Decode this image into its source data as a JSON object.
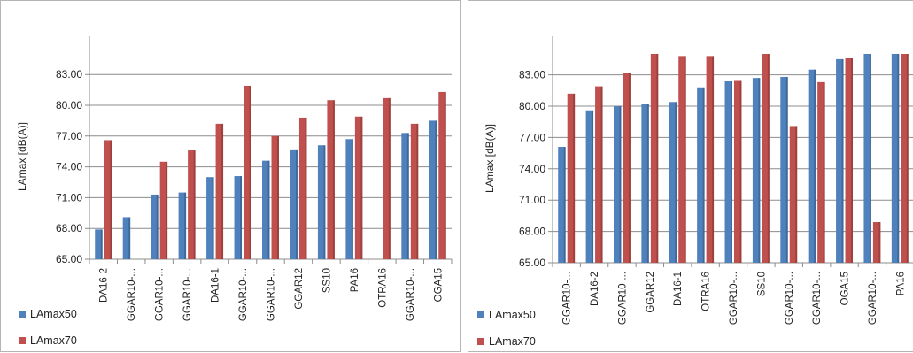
{
  "colors": {
    "series1": "#4f81bd",
    "series2": "#c0504d",
    "grid": "#8c8c8c",
    "axis": "#8c8c8c"
  },
  "chart_data": [
    {
      "type": "bar",
      "ylabel": "LAmax [dB(A)]",
      "ylim": [
        65,
        85
      ],
      "yticks": [
        65,
        68,
        71,
        74,
        77,
        80,
        83
      ],
      "ytick_labels": [
        "65.00",
        "68.00",
        "71.00",
        "74.00",
        "77.00",
        "80.00",
        "83.00"
      ],
      "grid": true,
      "legend_position": "bottom-left",
      "categories": [
        "DA16-2",
        "GGAR10-...",
        "GGAR10-...",
        "GGAR10-...",
        "DA16-1",
        "GGAR10-...",
        "GGAR10-...",
        "GGAR12",
        "SS10",
        "PA16",
        "OTRA16",
        "GGAR10-...",
        "OGA15"
      ],
      "series": [
        {
          "name": "LAmax50",
          "values": [
            67.9,
            69.1,
            71.3,
            71.5,
            73.0,
            73.1,
            74.6,
            75.7,
            76.1,
            76.7,
            null,
            77.3,
            78.5
          ]
        },
        {
          "name": "LAmax70",
          "values": [
            76.6,
            null,
            74.5,
            75.6,
            78.2,
            81.9,
            77.0,
            78.8,
            80.5,
            78.9,
            80.7,
            78.2,
            81.3
          ]
        }
      ]
    },
    {
      "type": "bar",
      "ylabel": "LAmax [dB(A)]",
      "ylim": [
        65,
        85
      ],
      "yticks": [
        65,
        68,
        71,
        74,
        77,
        80,
        83
      ],
      "ytick_labels": [
        "65.00",
        "68.00",
        "71.00",
        "74.00",
        "77.00",
        "80.00",
        "83.00"
      ],
      "grid": true,
      "legend_position": "bottom-left",
      "categories": [
        "GGAR10-...",
        "DA16-2",
        "GGAR10-...",
        "GGAR12",
        "DA16-1",
        "OTRA16",
        "GGAR10-...",
        "SS10",
        "GGAR10-...",
        "GGAR10-...",
        "OGA15",
        "GGAR10-...",
        "PA16"
      ],
      "series": [
        {
          "name": "LAmax50",
          "values": [
            76.1,
            79.6,
            80.0,
            80.2,
            80.4,
            81.8,
            82.4,
            82.7,
            82.8,
            83.5,
            84.5,
            85.0,
            85.0
          ]
        },
        {
          "name": "LAmax70",
          "values": [
            81.2,
            81.9,
            83.2,
            85.0,
            84.8,
            84.8,
            82.5,
            85.0,
            78.1,
            82.3,
            84.6,
            68.9,
            85.0
          ]
        }
      ]
    }
  ]
}
